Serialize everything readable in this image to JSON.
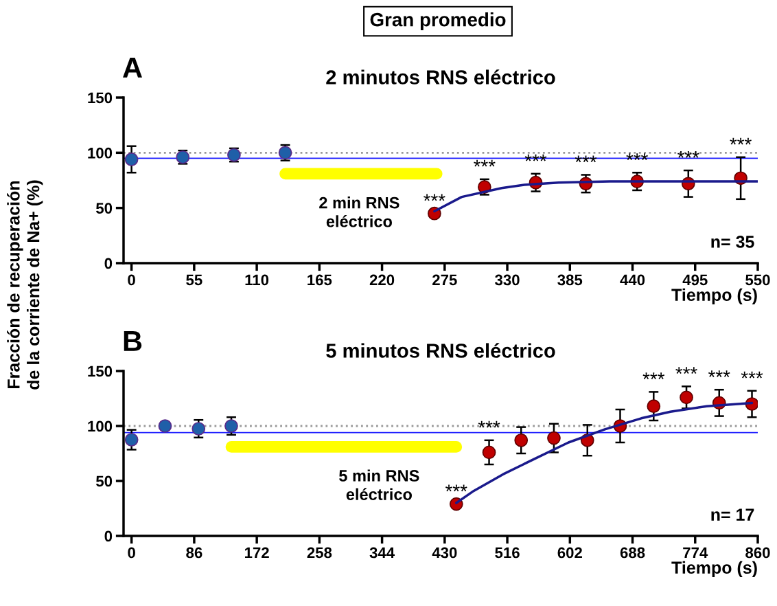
{
  "chart_data": [
    {
      "type": "scatter",
      "title": "2 minutos RNS eléctrico",
      "xlabel": "Tiempo (s)",
      "ylabel": "Fracción de recuperación\nde la corriente de Na+ (%)",
      "xlim": [
        -7,
        550
      ],
      "xticks": [
        0,
        55,
        110,
        165,
        220,
        275,
        330,
        385,
        440,
        495,
        550
      ],
      "ylim": [
        0,
        150
      ],
      "yticks": [
        0,
        50,
        100,
        150
      ],
      "grid": false,
      "legend": false,
      "series": [
        {
          "type": "line",
          "marker": "none",
          "color": "#ffff00",
          "x": [
            135,
            268
          ],
          "values": [
            81,
            81
          ]
        },
        {
          "marker": "circle",
          "color": "#1f5fa8",
          "x": [
            0,
            45,
            90,
            135
          ],
          "values": [
            94,
            96,
            98,
            100
          ],
          "errors": [
            12,
            6,
            6,
            7
          ]
        },
        {
          "type": "line",
          "marker": "none",
          "color": "#1a1a8c",
          "x": [
            266,
            290,
            325,
            345,
            375,
            420,
            550
          ],
          "values": [
            47,
            60,
            68,
            71,
            73,
            74,
            74
          ]
        },
        {
          "marker": "circle",
          "color": "#c00000",
          "x": [
            266,
            310,
            355,
            399,
            444,
            489,
            535
          ],
          "values": [
            45,
            69,
            73,
            72,
            74,
            72,
            77
          ],
          "errors": [
            null,
            7,
            8,
            8,
            8,
            12,
            19
          ]
        }
      ],
      "ref_lines": [
        {
          "axis": "y",
          "value": 100,
          "color": "#999999",
          "line_style": "dotted"
        },
        {
          "axis": "y",
          "value": 95,
          "color": "#2020ff",
          "line_style": "solid"
        }
      ],
      "annotations": [
        "Gran promedio",
        "A",
        "n= 35",
        "2 min RNS\neléctrico",
        {
          "text": "***",
          "x": 266,
          "y": 45
        },
        {
          "text": "***",
          "x": 310,
          "y": 69
        },
        {
          "text": "***",
          "x": 355,
          "y": 73
        },
        {
          "text": "***",
          "x": 399,
          "y": 72
        },
        {
          "text": "***",
          "x": 444,
          "y": 74
        },
        {
          "text": "***",
          "x": 489,
          "y": 72
        },
        {
          "text": "***",
          "x": 535,
          "y": 77
        }
      ]
    },
    {
      "type": "scatter",
      "title": "5 minutos RNS eléctrico",
      "xlabel": "Tiempo (s)",
      "xlim": [
        -11,
        860
      ],
      "xticks": [
        0,
        86,
        172,
        258,
        344,
        430,
        516,
        602,
        688,
        774,
        860
      ],
      "ylim": [
        0,
        150
      ],
      "yticks": [
        0,
        50,
        100,
        150
      ],
      "grid": false,
      "legend": false,
      "series": [
        {
          "type": "line",
          "marker": "none",
          "color": "#ffff00",
          "x": [
            137,
            446
          ],
          "values": [
            81,
            81
          ]
        },
        {
          "marker": "circle",
          "color": "#1f5fa8",
          "x": [
            0,
            46,
            92,
            137
          ],
          "values": [
            87.5,
            100,
            97.5,
            100
          ],
          "errors": [
            9,
            null,
            8,
            8
          ]
        },
        {
          "type": "line",
          "marker": "none",
          "color": "#1a1a8c",
          "x": [
            446,
            470,
            510,
            550,
            600,
            650,
            700,
            740,
            790,
            852
          ],
          "values": [
            30,
            41,
            56,
            69,
            85,
            97,
            107,
            113,
            118,
            121
          ]
        },
        {
          "marker": "circle",
          "color": "#c00000",
          "x": [
            446,
            491,
            535,
            580,
            626,
            671,
            717,
            762,
            807,
            852
          ],
          "values": [
            29,
            76,
            87,
            89,
            87,
            100,
            118,
            126,
            121,
            120
          ],
          "errors": [
            null,
            11,
            12,
            13,
            14,
            15,
            13,
            10,
            12,
            12
          ]
        }
      ],
      "ref_lines": [
        {
          "axis": "y",
          "value": 100,
          "color": "#999999",
          "line_style": "dotted"
        },
        {
          "axis": "y",
          "value": 94,
          "color": "#2020ff",
          "line_style": "solid"
        }
      ],
      "annotations": [
        "B",
        "n= 17",
        "5 min RNS\neléctrico",
        {
          "text": "***",
          "x": 446,
          "y": 29
        },
        {
          "text": "***",
          "x": 491,
          "y": 76
        },
        {
          "text": "***",
          "x": 717,
          "y": 118
        },
        {
          "text": "***",
          "x": 762,
          "y": 126
        },
        {
          "text": "***",
          "x": 807,
          "y": 121
        },
        {
          "text": "***",
          "x": 852,
          "y": 120
        }
      ]
    }
  ]
}
